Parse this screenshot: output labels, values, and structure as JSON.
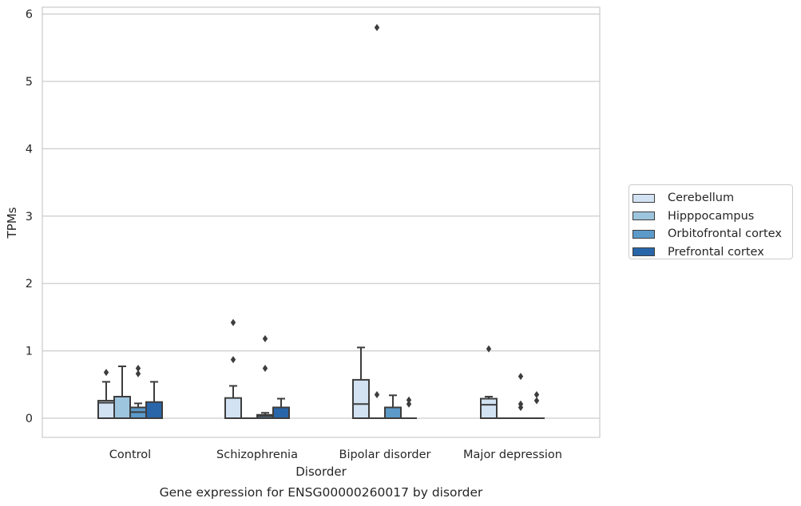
{
  "chart_data": {
    "type": "box",
    "title": "Gene expression for ENSG00000260017 by disorder",
    "xlabel": "Disorder",
    "ylabel": "TPMs",
    "categories": [
      "Control",
      "Schizophrenia",
      "Bipolar disorder",
      "Major depression"
    ],
    "ylim": [
      -0.28,
      6.1
    ],
    "yticks": [
      0,
      1,
      2,
      3,
      4,
      5,
      6
    ],
    "grid": "horizontal",
    "legend_position": "outside-right",
    "series": [
      {
        "name": "Cerebellum",
        "color": "#d2e2f3",
        "boxes": [
          {
            "q1": 0.0,
            "median": 0.23,
            "q3": 0.26,
            "whisker_low": 0.0,
            "whisker_high": 0.54,
            "outliers": [
              0.68
            ]
          },
          {
            "q1": 0.0,
            "median": 0.0,
            "q3": 0.3,
            "whisker_low": 0.0,
            "whisker_high": 0.48,
            "outliers": [
              1.42,
              0.87
            ]
          },
          {
            "q1": 0.0,
            "median": 0.21,
            "q3": 0.57,
            "whisker_low": 0.0,
            "whisker_high": 1.05,
            "outliers": []
          },
          {
            "q1": 0.0,
            "median": 0.2,
            "q3": 0.29,
            "whisker_low": 0.0,
            "whisker_high": 0.32,
            "outliers": [
              1.03
            ]
          }
        ]
      },
      {
        "name": "Hipppocampus",
        "color": "#9dc5de",
        "boxes": [
          {
            "q1": 0.0,
            "median": 0.0,
            "q3": 0.32,
            "whisker_low": 0.0,
            "whisker_high": 0.77,
            "outliers": []
          },
          {
            "q1": 0.0,
            "median": 0.0,
            "q3": 0.0,
            "whisker_low": 0.0,
            "whisker_high": 0.0,
            "outliers": []
          },
          {
            "q1": 0.0,
            "median": 0.0,
            "q3": 0.0,
            "whisker_low": 0.0,
            "whisker_high": 0.0,
            "outliers": [
              0.35,
              5.8
            ]
          },
          {
            "q1": 0.0,
            "median": 0.0,
            "q3": 0.0,
            "whisker_low": 0.0,
            "whisker_high": 0.0,
            "outliers": []
          }
        ]
      },
      {
        "name": "Orbitofrontal cortex",
        "color": "#5c9ac9",
        "boxes": [
          {
            "q1": 0.0,
            "median": 0.09,
            "q3": 0.16,
            "whisker_low": 0.0,
            "whisker_high": 0.22,
            "outliers": [
              0.74,
              0.66
            ]
          },
          {
            "q1": 0.0,
            "median": 0.03,
            "q3": 0.05,
            "whisker_low": 0.0,
            "whisker_high": 0.08,
            "outliers": [
              1.18,
              0.74
            ]
          },
          {
            "q1": 0.0,
            "median": 0.0,
            "q3": 0.16,
            "whisker_low": 0.0,
            "whisker_high": 0.34,
            "outliers": []
          },
          {
            "q1": 0.0,
            "median": 0.0,
            "q3": 0.0,
            "whisker_low": 0.0,
            "whisker_high": 0.0,
            "outliers": [
              0.62,
              0.21,
              0.16
            ]
          }
        ]
      },
      {
        "name": "Prefrontal cortex",
        "color": "#2966a9",
        "boxes": [
          {
            "q1": 0.0,
            "median": 0.0,
            "q3": 0.24,
            "whisker_low": 0.0,
            "whisker_high": 0.54,
            "outliers": []
          },
          {
            "q1": 0.0,
            "median": 0.0,
            "q3": 0.16,
            "whisker_low": 0.0,
            "whisker_high": 0.29,
            "outliers": []
          },
          {
            "q1": 0.0,
            "median": 0.0,
            "q3": 0.0,
            "whisker_low": 0.0,
            "whisker_high": 0.0,
            "outliers": [
              0.27,
              0.21
            ]
          },
          {
            "q1": 0.0,
            "median": 0.0,
            "q3": 0.0,
            "whisker_low": 0.0,
            "whisker_high": 0.0,
            "outliers": [
              0.35,
              0.26
            ]
          }
        ]
      }
    ]
  }
}
